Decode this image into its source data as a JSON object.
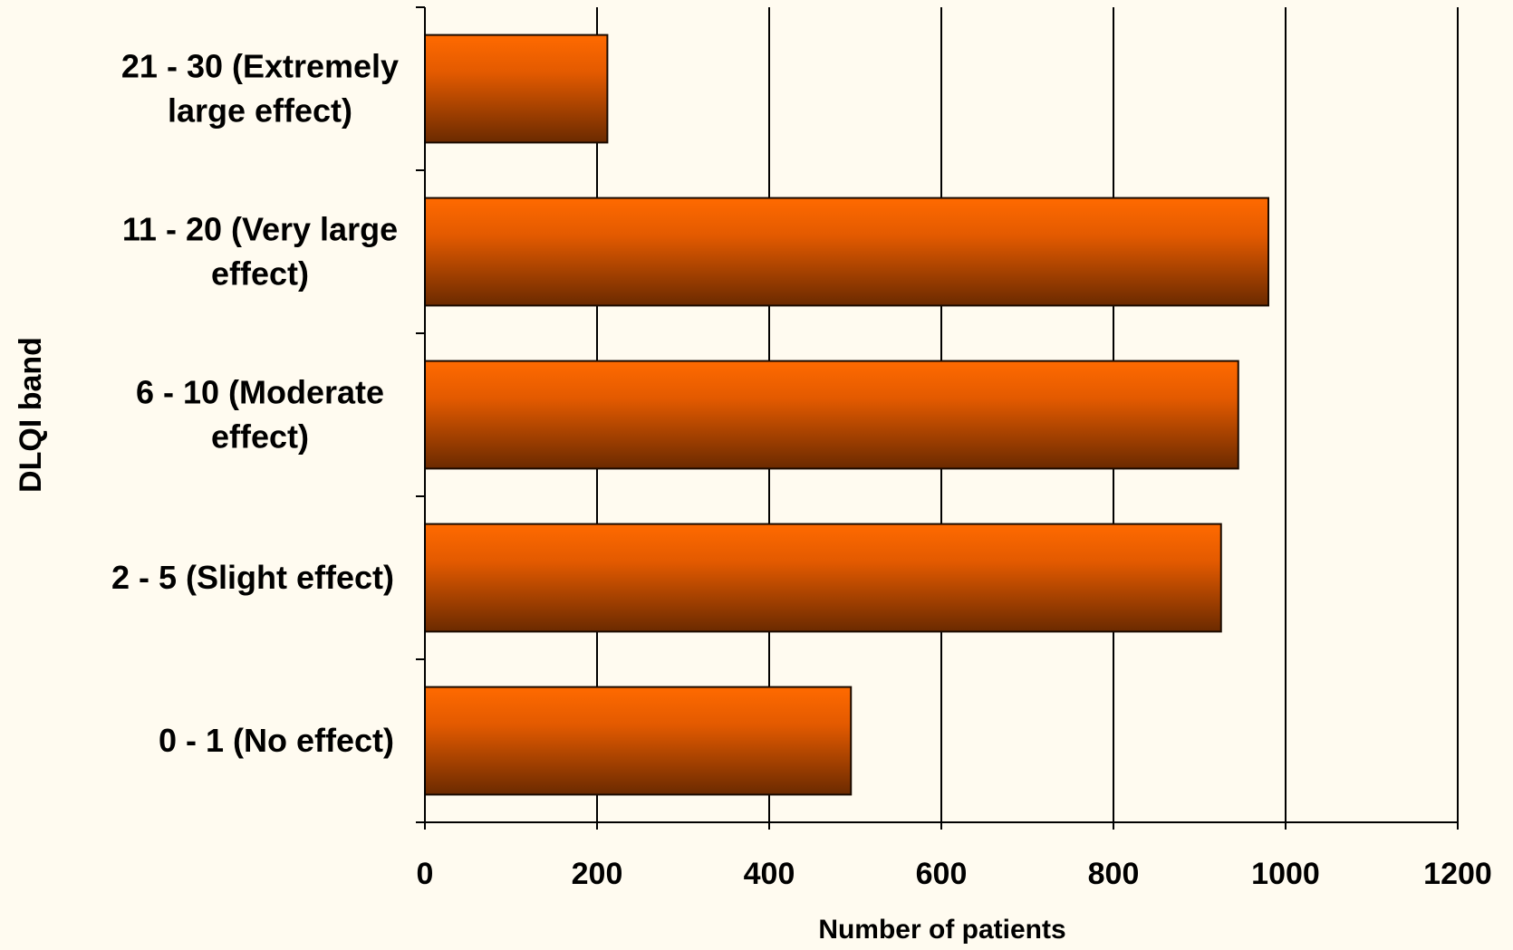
{
  "chart_data": {
    "type": "bar",
    "orientation": "horizontal",
    "categories": [
      [
        "0 - 1 (No effect)"
      ],
      [
        "2 - 5 (Slight effect)"
      ],
      [
        "6 - 10 (Moderate",
        "effect)"
      ],
      [
        "11 - 20 (Very large",
        "effect)"
      ],
      [
        "21 - 30 (Extremely",
        "large effect)"
      ]
    ],
    "values": [
      495,
      925,
      945,
      980,
      212
    ],
    "xlabel": "Number of patients",
    "ylabel": "DLQI band",
    "xlim": [
      0,
      1200
    ],
    "xticks": [
      "0",
      "200",
      "400",
      "600",
      "800",
      "1000",
      "1200"
    ],
    "grid": "vertical",
    "legend": "none"
  },
  "colors": {
    "background": "#fffbf0",
    "bar_top": "#ff6a00",
    "bar_bottom": "#6b2a00",
    "axis": "#000000"
  }
}
